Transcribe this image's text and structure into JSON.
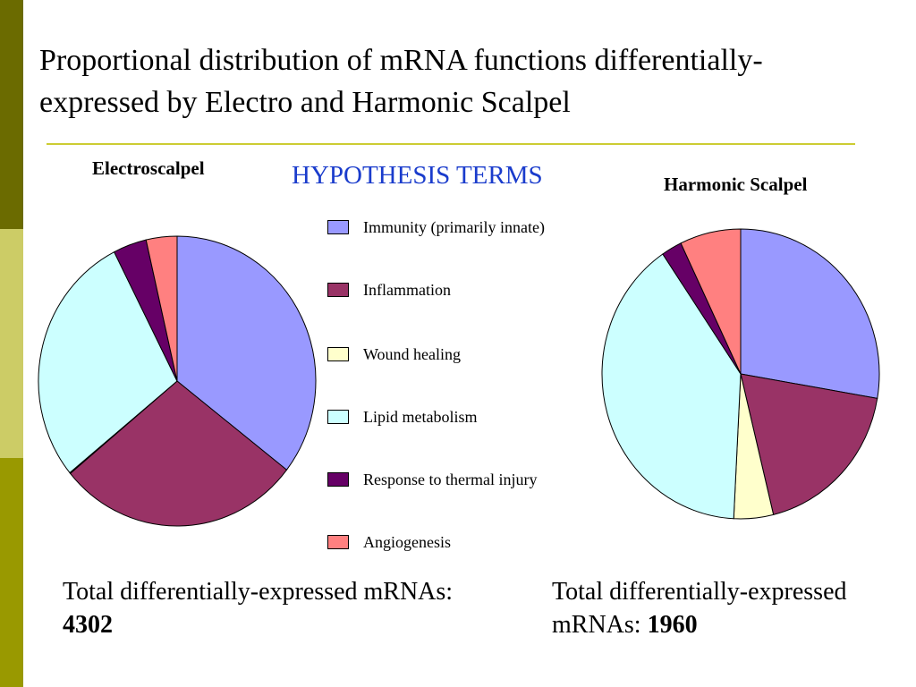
{
  "title": "Proportional distribution of mRNA functions differentially-expressed by Electro and Harmonic Scalpel",
  "legend_title": "HYPOTHESIS TERMS",
  "colors": {
    "sidebar_top": "#6b6b00",
    "sidebar_mid": "#cccc66",
    "sidebar_bottom": "#999900",
    "title_rule": "#cccc33",
    "legend_title": "#1a3ccc"
  },
  "legend": [
    {
      "label": "Immunity (primarily innate)",
      "color": "#9999ff"
    },
    {
      "label": "Inflammation",
      "color": "#993366"
    },
    {
      "label": "Wound healing",
      "color": "#ffffcc"
    },
    {
      "label": "Lipid metabolism",
      "color": "#ccffff"
    },
    {
      "label": "Response to thermal injury",
      "color": "#660066"
    },
    {
      "label": "Angiogenesis",
      "color": "#ff8080"
    }
  ],
  "chart_data": [
    {
      "type": "pie",
      "title": "Electroscalpel",
      "categories": [
        "Immunity (primarily innate)",
        "Inflammation",
        "Wound healing",
        "Lipid metabolism",
        "Response to thermal injury",
        "Angiogenesis"
      ],
      "values": [
        35.5,
        28.5,
        0.1,
        28.4,
        3.9,
        3.6
      ],
      "total_prefix": "Total differentially-expressed mRNAs: ",
      "total_value": "4302"
    },
    {
      "type": "pie",
      "title": "Harmonic Scalpel",
      "categories": [
        "Immunity (primarily innate)",
        "Inflammation",
        "Wound healing",
        "Lipid metabolism",
        "Response to thermal injury",
        "Angiogenesis"
      ],
      "values": [
        27.7,
        18.5,
        4.6,
        39.7,
        2.4,
        7.1
      ],
      "total_prefix": "Total differentially-expressed mRNAs: ",
      "total_value": "1960"
    }
  ]
}
